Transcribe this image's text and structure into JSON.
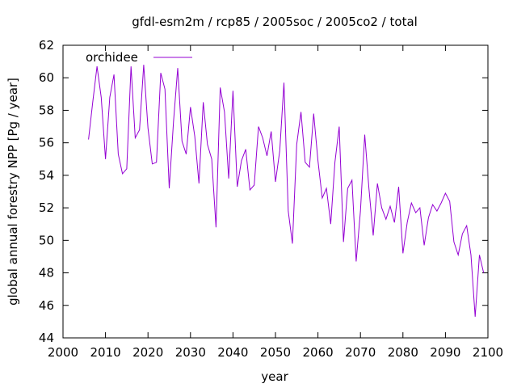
{
  "chart_data": {
    "type": "line",
    "title": "gfdl-esm2m / rcp85 / 2005soc / 2005co2 / total",
    "xlabel": "year",
    "ylabel": "global annual forestry NPP [Pg / year]",
    "xlim": [
      2000,
      2100
    ],
    "ylim": [
      44,
      62
    ],
    "xticks": [
      2000,
      2010,
      2020,
      2030,
      2040,
      2050,
      2060,
      2070,
      2080,
      2090,
      2100
    ],
    "yticks": [
      44,
      46,
      48,
      50,
      52,
      54,
      56,
      58,
      60,
      62
    ],
    "legend_position": "top-left",
    "grid": false,
    "series": [
      {
        "name": "orchidee",
        "color": "#9400d3",
        "x_start": 2006,
        "values": [
          56.2,
          58.5,
          60.7,
          58.8,
          55.0,
          58.8,
          60.2,
          55.3,
          54.1,
          54.4,
          60.7,
          56.3,
          56.8,
          60.8,
          56.9,
          54.7,
          54.8,
          60.3,
          59.3,
          53.2,
          57.3,
          60.6,
          56.1,
          55.3,
          58.2,
          56.4,
          53.5,
          58.5,
          55.9,
          55.0,
          50.8,
          59.4,
          57.9,
          53.8,
          59.2,
          53.3,
          54.9,
          55.6,
          53.1,
          53.4,
          57.0,
          56.3,
          55.2,
          56.7,
          53.6,
          55.5,
          59.7,
          51.8,
          49.8,
          55.9,
          57.9,
          54.8,
          54.5,
          57.8,
          54.9,
          52.6,
          53.2,
          51.0,
          54.8,
          57.0,
          49.9,
          53.2,
          53.7,
          48.7,
          51.8,
          56.5,
          53.2,
          50.3,
          53.5,
          52.0,
          51.3,
          52.1,
          51.1,
          53.3,
          49.2,
          51.1,
          52.3,
          51.7,
          52.0,
          49.7,
          51.4,
          52.2,
          51.8,
          52.3,
          52.9,
          52.4,
          49.9,
          49.1,
          50.4,
          50.9,
          49.1,
          45.3,
          49.1,
          48.0
        ]
      }
    ]
  }
}
